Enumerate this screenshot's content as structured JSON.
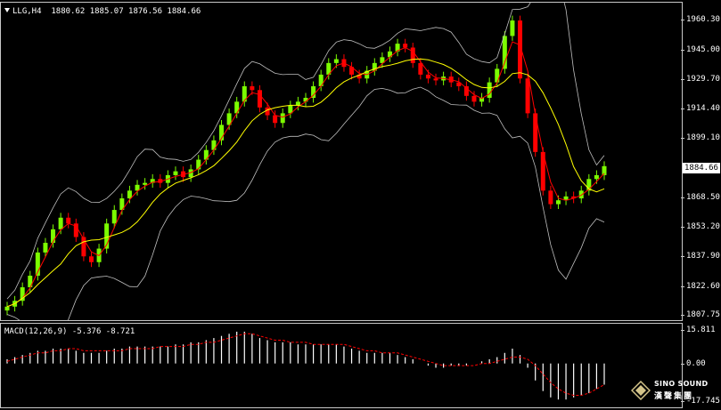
{
  "chart": {
    "symbol": "LLG,H4",
    "ohlc": "1880.62 1885.07 1876.56 1884.66",
    "current_price": "1884.66",
    "price_ticks": [
      "1960.30",
      "1945.00",
      "1929.70",
      "1914.40",
      "1899.10",
      "1868.50",
      "1853.20",
      "1837.90",
      "1822.60",
      "1807.75"
    ],
    "colors": {
      "bull": "#7cfc00",
      "bear": "#ff0000",
      "ma_fast": "#ff0000",
      "ma_slow": "#ffff00",
      "bands": "#bfbfbf",
      "histogram": "#ffffff",
      "signal": "#ff0000"
    }
  },
  "macd": {
    "label": "MACD(12,26,9) -5.376 -8.721",
    "ticks": [
      "15.811",
      "0.00",
      "-17.745"
    ]
  },
  "watermark": {
    "brand_en": "SINO SOUND",
    "brand_zh": "漢聲集團"
  },
  "chart_data": {
    "type": "candlestick",
    "ylim": [
      1807.75,
      1966
    ],
    "closes": [
      1812,
      1815,
      1822,
      1828,
      1840,
      1845,
      1852,
      1858,
      1855,
      1848,
      1838,
      1835,
      1842,
      1855,
      1862,
      1868,
      1872,
      1875,
      1876,
      1878,
      1876,
      1880,
      1882,
      1879,
      1883,
      1888,
      1893,
      1898,
      1906,
      1912,
      1918,
      1926,
      1924,
      1915,
      1911,
      1907,
      1912,
      1916,
      1918,
      1920,
      1926,
      1932,
      1938,
      1940,
      1936,
      1932,
      1930,
      1934,
      1938,
      1941,
      1944,
      1948,
      1946,
      1938,
      1932,
      1930,
      1929,
      1931,
      1928,
      1926,
      1921,
      1918,
      1920,
      1928,
      1935,
      1952,
      1960,
      1930,
      1912,
      1892,
      1872,
      1865,
      1867,
      1869,
      1868,
      1872,
      1878,
      1880,
      1884.66
    ],
    "macd_hist": [
      2,
      3,
      4,
      5,
      6,
      6,
      7,
      7,
      7,
      6,
      5,
      5,
      5,
      6,
      7,
      7,
      8,
      8,
      8,
      8,
      8,
      8,
      9,
      9,
      10,
      10,
      11,
      12,
      13,
      14,
      15,
      15,
      14,
      12,
      11,
      10,
      10,
      10,
      9,
      9,
      9,
      9,
      9,
      9,
      8,
      7,
      6,
      5,
      5,
      5,
      5,
      4,
      3,
      2,
      0,
      -1,
      -2,
      -2,
      -1,
      -1,
      -1,
      0,
      1,
      2,
      3,
      5,
      7,
      4,
      -2,
      -8,
      -13,
      -16,
      -17,
      -17,
      -16,
      -15,
      -14,
      -12,
      -10
    ],
    "macd_signal": [
      1,
      2,
      3,
      4,
      5,
      5,
      6,
      6,
      7,
      7,
      6,
      6,
      6,
      6,
      6,
      6,
      7,
      7,
      7,
      7,
      8,
      8,
      8,
      8,
      9,
      9,
      10,
      10,
      11,
      12,
      13,
      14,
      14,
      13,
      12,
      11,
      11,
      10,
      10,
      10,
      9,
      9,
      9,
      9,
      9,
      8,
      7,
      6,
      6,
      5,
      5,
      5,
      4,
      3,
      2,
      1,
      0,
      -1,
      -1,
      -1,
      -1,
      -1,
      0,
      0,
      1,
      2,
      3,
      3,
      2,
      -1,
      -5,
      -9,
      -12,
      -14,
      -15,
      -15,
      -14,
      -12,
      -10
    ]
  }
}
